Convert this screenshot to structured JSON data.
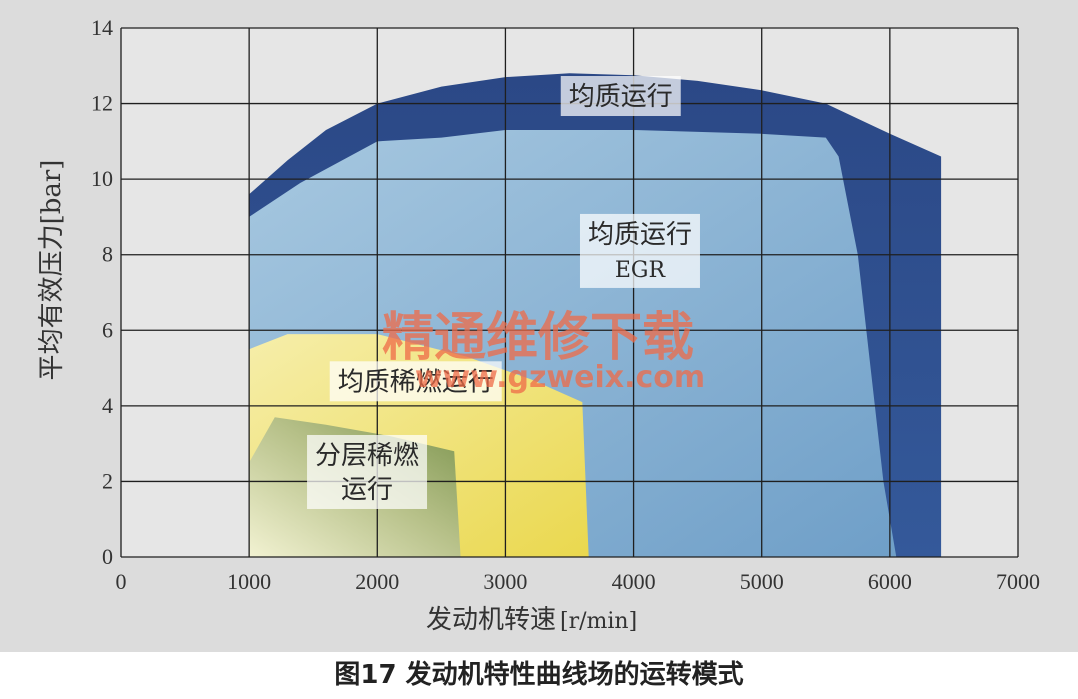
{
  "chart_data": {
    "type": "area",
    "caption": "图17 发动机特性曲线场的运转模式",
    "xlabel": "发动机转速",
    "xlabel_unit": "[r/min]",
    "ylabel": "平均有效压力[bar]",
    "xlim": [
      0,
      7000
    ],
    "ylim": [
      0,
      14
    ],
    "x_ticks": [
      0,
      1000,
      2000,
      3000,
      4000,
      5000,
      6000,
      7000
    ],
    "y_ticks": [
      0,
      2,
      4,
      6,
      8,
      10,
      12,
      14
    ],
    "grid": true,
    "regions": [
      {
        "name": "均质运行",
        "label_lines": [
          "均质运行"
        ],
        "color": "#2e4f8c",
        "label_at": [
          3900,
          12.2
        ],
        "boundary": [
          [
            1000,
            0
          ],
          [
            1000,
            9.6
          ],
          [
            1300,
            10.5
          ],
          [
            1600,
            11.3
          ],
          [
            2000,
            12.0
          ],
          [
            2500,
            12.45
          ],
          [
            3000,
            12.7
          ],
          [
            3500,
            12.8
          ],
          [
            4000,
            12.75
          ],
          [
            4500,
            12.6
          ],
          [
            5000,
            12.35
          ],
          [
            5500,
            12.0
          ],
          [
            6000,
            11.2
          ],
          [
            6400,
            10.6
          ],
          [
            6400,
            0
          ]
        ]
      },
      {
        "name": "均质运行 EGR",
        "label_lines": [
          "均质运行",
          "EGR"
        ],
        "color": "#8fb8d8",
        "label_at": [
          4050,
          8.1
        ],
        "boundary": [
          [
            1000,
            0
          ],
          [
            1000,
            9.0
          ],
          [
            1400,
            9.9
          ],
          [
            2000,
            11.0
          ],
          [
            2500,
            11.1
          ],
          [
            3000,
            11.3
          ],
          [
            4000,
            11.3
          ],
          [
            5000,
            11.2
          ],
          [
            5500,
            11.1
          ],
          [
            5600,
            10.6
          ],
          [
            5750,
            8.0
          ],
          [
            5850,
            5.0
          ],
          [
            5950,
            2.0
          ],
          [
            6050,
            0
          ]
        ]
      },
      {
        "name": "均质稀燃运行",
        "label_lines": [
          "均质稀燃运行"
        ],
        "color": "#f0e070",
        "label_at": [
          2300,
          4.65
        ],
        "boundary": [
          [
            1000,
            0
          ],
          [
            1000,
            5.5
          ],
          [
            1300,
            5.9
          ],
          [
            2000,
            5.9
          ],
          [
            2700,
            5.3
          ],
          [
            3200,
            4.7
          ],
          [
            3600,
            4.1
          ],
          [
            3650,
            0
          ]
        ]
      },
      {
        "name": "分层稀燃运行",
        "label_lines": [
          "分层稀燃",
          "运行"
        ],
        "color": "#9eae6a",
        "label_at": [
          1920,
          2.25
        ],
        "boundary": [
          [
            1000,
            0
          ],
          [
            1000,
            2.5
          ],
          [
            1200,
            3.7
          ],
          [
            1600,
            3.5
          ],
          [
            2100,
            3.2
          ],
          [
            2600,
            2.8
          ],
          [
            2650,
            0
          ]
        ]
      }
    ]
  },
  "watermark": {
    "text": "精通维修下载",
    "url": "www.gzweix.com"
  }
}
